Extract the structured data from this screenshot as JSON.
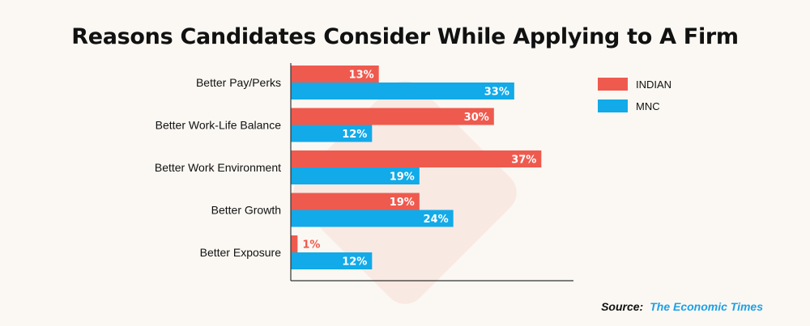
{
  "chart_data": {
    "type": "bar",
    "orientation": "horizontal",
    "title": "Reasons Candidates Consider While Applying to A Firm",
    "categories": [
      "Better Pay/Perks",
      "Better Work-Life Balance",
      "Better Work Environment",
      "Better Growth",
      "Better Exposure"
    ],
    "series": [
      {
        "name": "INDIAN",
        "values": [
          13,
          30,
          37,
          19,
          1
        ],
        "color": "#ef5a4e"
      },
      {
        "name": "MNC",
        "values": [
          33,
          12,
          19,
          24,
          12
        ],
        "color": "#12aae8"
      }
    ],
    "value_suffix": "%",
    "xlim": [
      0,
      47
    ],
    "legend_position": "right",
    "grid": false
  },
  "source": {
    "label": "Source:",
    "value": "The Economic Times"
  }
}
